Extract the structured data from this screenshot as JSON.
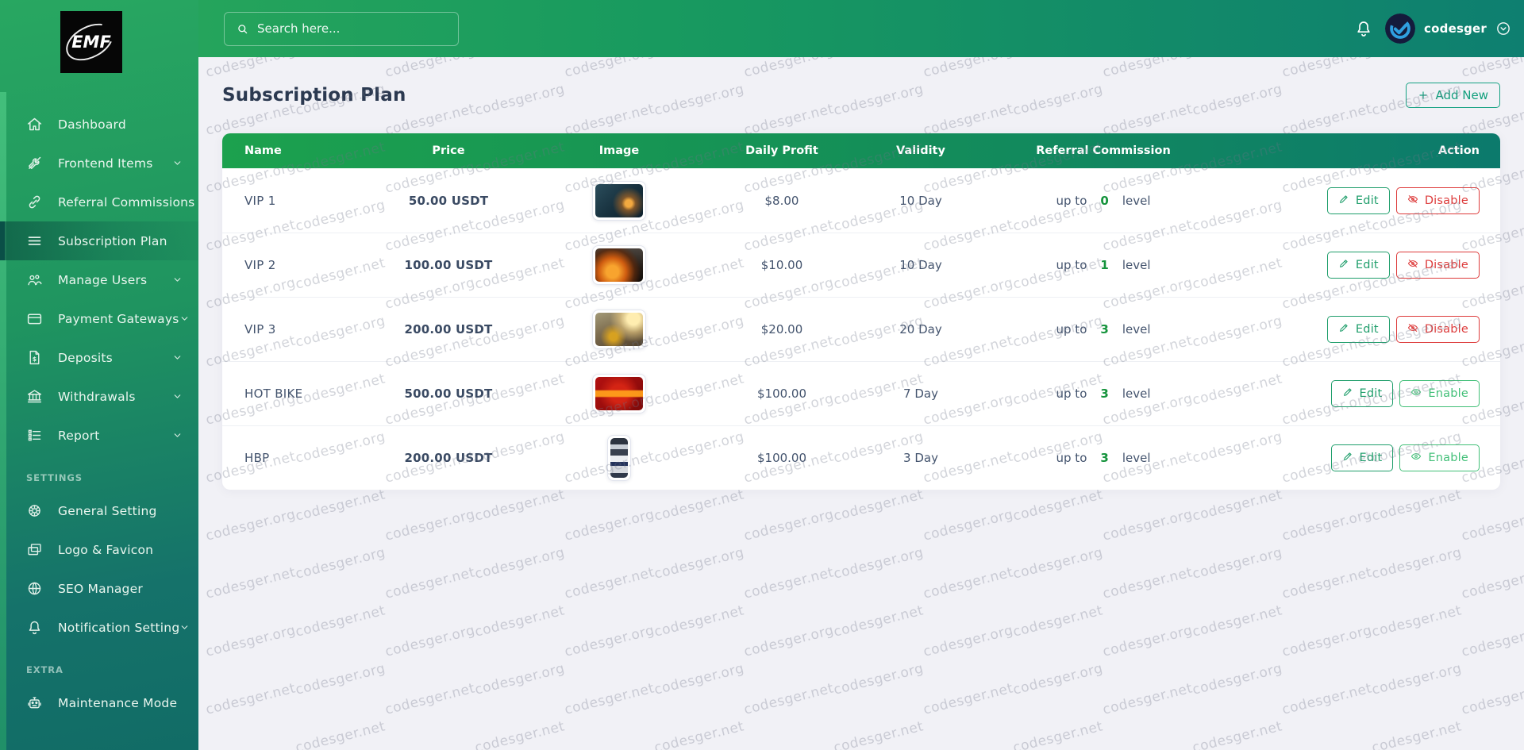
{
  "app": {
    "logo_text": "EMF"
  },
  "topbar": {
    "search_placeholder": "Search here...",
    "username": "codesger"
  },
  "sidebar": {
    "sections": [
      {
        "title": "",
        "items": [
          {
            "icon": "home",
            "label": "Dashboard",
            "chevron": false,
            "active": false
          },
          {
            "icon": "tools",
            "label": "Frontend Items",
            "chevron": true,
            "active": false
          },
          {
            "icon": "link",
            "label": "Referral Commissions",
            "chevron": false,
            "active": false
          },
          {
            "icon": "menu",
            "label": "Subscription Plan",
            "chevron": false,
            "active": true
          },
          {
            "icon": "users",
            "label": "Manage Users",
            "chevron": true,
            "active": false
          },
          {
            "icon": "card",
            "label": "Payment Gateways",
            "chevron": true,
            "active": false
          },
          {
            "icon": "file-dollar",
            "label": "Deposits",
            "chevron": true,
            "active": false
          },
          {
            "icon": "bank",
            "label": "Withdrawals",
            "chevron": true,
            "active": false
          },
          {
            "icon": "report",
            "label": "Report",
            "chevron": true,
            "active": false
          }
        ]
      },
      {
        "title": "SETTINGS",
        "items": [
          {
            "icon": "gear",
            "label": "General Setting",
            "chevron": false,
            "active": false
          },
          {
            "icon": "images",
            "label": "Logo & Favicon",
            "chevron": false,
            "active": false
          },
          {
            "icon": "globe",
            "label": "SEO Manager",
            "chevron": false,
            "active": false
          },
          {
            "icon": "bell",
            "label": "Notification Setting",
            "chevron": true,
            "active": false
          }
        ]
      },
      {
        "title": "EXTRA",
        "items": [
          {
            "icon": "robot",
            "label": "Maintenance Mode",
            "chevron": false,
            "active": false
          }
        ]
      }
    ]
  },
  "page": {
    "title": "Subscription Plan",
    "add_new_label": "Add New"
  },
  "table": {
    "headers": [
      "Name",
      "Price",
      "Image",
      "Daily Profit",
      "Validity",
      "Referral Commission",
      "Action"
    ],
    "commission_prefix": "up to",
    "commission_suffix": "level",
    "edit_label": "Edit",
    "disable_label": "Disable",
    "enable_label": "Enable",
    "rows": [
      {
        "name": "VIP 1",
        "price": "50.00 USDT",
        "image": "mining-night",
        "daily_profit": "$8.00",
        "validity": "10 Day",
        "commission_levels": "0",
        "toggle": "disable"
      },
      {
        "name": "VIP 2",
        "price": "100.00 USDT",
        "image": "fire",
        "daily_profit": "$10.00",
        "validity": "10 Day",
        "commission_levels": "1",
        "toggle": "disable"
      },
      {
        "name": "VIP 3",
        "price": "200.00 USDT",
        "image": "quarry",
        "daily_profit": "$20.00",
        "validity": "20 Day",
        "commission_levels": "3",
        "toggle": "disable"
      },
      {
        "name": "HOT BIKE",
        "price": "500.00 USDT",
        "image": "hot-slot",
        "daily_profit": "$100.00",
        "validity": "7 Day",
        "commission_levels": "3",
        "toggle": "enable"
      },
      {
        "name": "HBP",
        "price": "200.00 USDT",
        "image": "machine",
        "daily_profit": "$100.00",
        "validity": "3 Day",
        "commission_levels": "3",
        "toggle": "enable"
      }
    ]
  },
  "watermarks": {
    "texts": [
      "codesger.org",
      "codesger.net"
    ]
  },
  "colors": {
    "sidebar_green": "#28a761",
    "sidebar_teal": "#15726a",
    "header_green": "#1ca14e",
    "header_teal": "#0c7a6c",
    "accent_green": "#16a283",
    "level_green": "#15933c",
    "edit_green": "#1f9e6b",
    "enable_green": "#41bf77",
    "danger_red": "#dd3b3b",
    "page_bg": "#f1f1f6",
    "text_dark": "#2b3950"
  }
}
